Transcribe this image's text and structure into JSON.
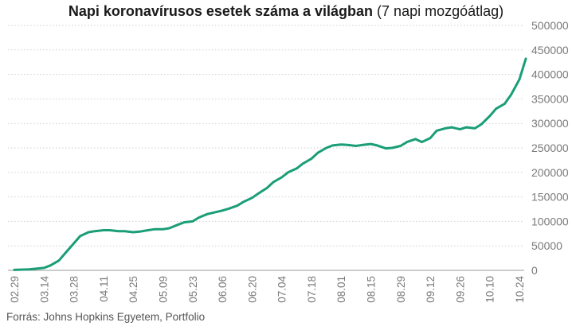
{
  "chart_data": {
    "type": "line",
    "title": "Napi koronavírusos esetek száma a világban",
    "subtitle": "(7 napi mozgóátlag)",
    "source": "Forrás: Johns Hopkins Egyetem, Portfolio",
    "xlabel": "",
    "ylabel": "",
    "ylim": [
      0,
      500000
    ],
    "y_ticks": [
      0,
      50000,
      100000,
      150000,
      200000,
      250000,
      300000,
      350000,
      400000,
      450000,
      500000
    ],
    "x_ticks": [
      "02.29",
      "03.14",
      "03.28",
      "04.11",
      "04.25",
      "05.09",
      "05.23",
      "06.06",
      "06.20",
      "07.04",
      "07.18",
      "08.01",
      "08.15",
      "08.29",
      "09.12",
      "09.26",
      "10.10",
      "10.24"
    ],
    "grid": true,
    "legend": "none",
    "series": [
      {
        "color": "#1a9e77",
        "x": [
          "02.29",
          "03.07",
          "03.14",
          "03.17",
          "03.21",
          "03.24",
          "03.28",
          "03.31",
          "04.04",
          "04.07",
          "04.11",
          "04.14",
          "04.18",
          "04.21",
          "04.25",
          "04.28",
          "05.02",
          "05.05",
          "05.09",
          "05.12",
          "05.16",
          "05.19",
          "05.23",
          "05.26",
          "05.30",
          "06.02",
          "06.06",
          "06.09",
          "06.13",
          "06.16",
          "06.20",
          "06.23",
          "06.27",
          "06.30",
          "07.04",
          "07.07",
          "07.11",
          "07.14",
          "07.18",
          "07.21",
          "07.25",
          "07.28",
          "08.01",
          "08.04",
          "08.08",
          "08.11",
          "08.15",
          "08.18",
          "08.22",
          "08.25",
          "08.29",
          "09.01",
          "09.05",
          "09.08",
          "09.12",
          "09.15",
          "09.19",
          "09.22",
          "09.26",
          "09.29",
          "10.03",
          "10.06",
          "10.10",
          "10.13",
          "10.17",
          "10.20",
          "10.24",
          "10.27"
        ],
        "values": [
          1000,
          2000,
          5000,
          10000,
          20000,
          35000,
          55000,
          70000,
          78000,
          80000,
          82000,
          82000,
          80000,
          80000,
          78000,
          79000,
          82000,
          84000,
          84000,
          86000,
          93000,
          98000,
          100000,
          108000,
          115000,
          118000,
          122000,
          126000,
          132000,
          140000,
          148000,
          157000,
          168000,
          180000,
          190000,
          200000,
          208000,
          218000,
          228000,
          240000,
          250000,
          255000,
          257000,
          256000,
          254000,
          256000,
          258000,
          255000,
          249000,
          250000,
          254000,
          262000,
          268000,
          262000,
          270000,
          285000,
          290000,
          292000,
          288000,
          292000,
          290000,
          298000,
          315000,
          330000,
          340000,
          358000,
          390000,
          432000
        ]
      }
    ]
  }
}
